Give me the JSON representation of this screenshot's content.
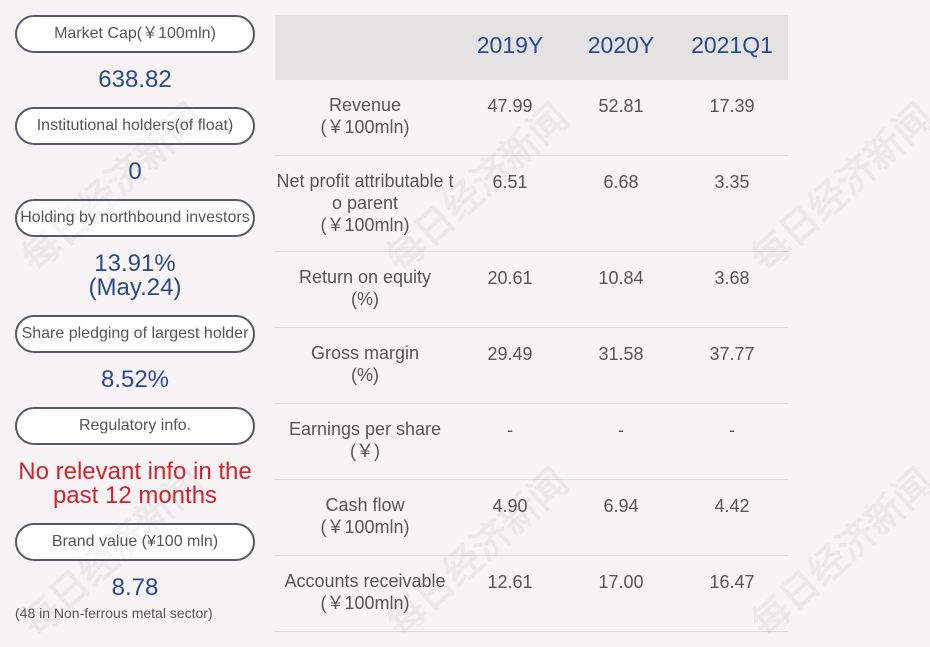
{
  "watermark": "每日经济新闻",
  "summary": [
    {
      "label": "Market Cap(￥100mln)",
      "value": [
        "638.82"
      ]
    },
    {
      "label": "Institutional holders(of float)",
      "value": [
        "0"
      ]
    },
    {
      "label": "Holding by northbound investors",
      "value": [
        "13.91%",
        "(May.24)"
      ]
    },
    {
      "label": "Share pledging of largest holder",
      "value": [
        "8.52%"
      ]
    },
    {
      "label": "Regulatory info.",
      "value": [
        "No relevant info in the",
        "past 12 months"
      ],
      "alert": true
    },
    {
      "label": "Brand value (¥100 mln)",
      "value": [
        "8.78"
      ],
      "note": "(48 in Non-ferrous metal sector)"
    }
  ],
  "table": {
    "columns": [
      "2019Y",
      "2020Y",
      "2021Q1"
    ],
    "rows": [
      {
        "label": [
          "Revenue",
          "(￥100mln)"
        ],
        "values": [
          "47.99",
          "52.81",
          "17.39"
        ]
      },
      {
        "label": [
          "Net profit attributable t",
          "o parent",
          "(￥100mln)"
        ],
        "values": [
          "6.51",
          "6.68",
          "3.35"
        ]
      },
      {
        "label": [
          "Return on equity",
          "(%)"
        ],
        "values": [
          "20.61",
          "10.84",
          "3.68"
        ]
      },
      {
        "label": [
          "Gross margin",
          "(%)"
        ],
        "values": [
          "29.49",
          "31.58",
          "37.77"
        ]
      },
      {
        "label": [
          "Earnings per share",
          "(￥)"
        ],
        "values": [
          "-",
          "-",
          "-"
        ]
      },
      {
        "label": [
          "Cash flow",
          "(￥100mln)"
        ],
        "values": [
          "4.90",
          "6.94",
          "4.42"
        ]
      },
      {
        "label": [
          "Accounts receivable",
          "(￥100mln)"
        ],
        "values": [
          "12.61",
          "17.00",
          "16.47"
        ]
      }
    ]
  }
}
